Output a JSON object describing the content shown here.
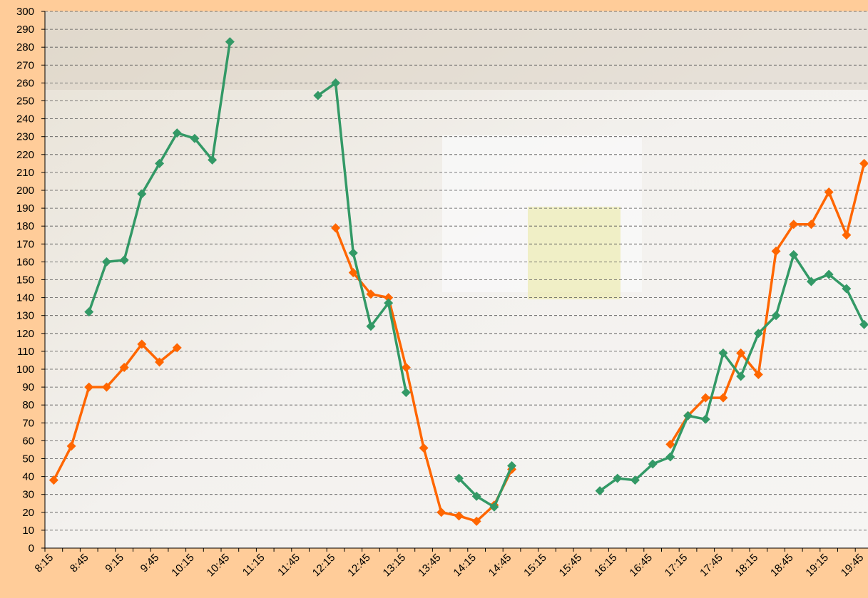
{
  "chart_data": {
    "type": "line",
    "categories": [
      "8:15",
      null,
      "8:45",
      null,
      "9:15",
      null,
      "9:45",
      null,
      "10:15",
      null,
      "10:45",
      null,
      "11:15",
      null,
      "11:45",
      null,
      "12:15",
      null,
      "12:45",
      null,
      "13:15",
      null,
      "13:45",
      null,
      "14:15",
      null,
      "14:45",
      null,
      "15:15",
      null,
      "15:45",
      null,
      "16:15",
      null,
      "16:45",
      null,
      "17:15",
      null,
      "17:45",
      null,
      "18:15",
      null,
      "18:45",
      null,
      "19:15",
      null,
      "19:45"
    ],
    "series": [
      {
        "color": "#ff6600",
        "values": [
          38,
          57,
          90,
          90,
          101,
          114,
          104,
          112,
          null,
          null,
          null,
          null,
          null,
          null,
          null,
          null,
          179,
          154,
          142,
          140,
          101,
          56,
          20,
          18,
          15,
          24,
          44,
          null,
          null,
          null,
          null,
          null,
          null,
          null,
          null,
          58,
          74,
          84,
          84,
          109,
          97,
          166,
          181,
          181,
          199,
          175,
          215
        ]
      },
      {
        "color": "#339966",
        "values": [
          null,
          null,
          132,
          160,
          161,
          198,
          215,
          232,
          229,
          217,
          283,
          null,
          null,
          null,
          null,
          253,
          260,
          165,
          124,
          137,
          87,
          null,
          null,
          39,
          29,
          23,
          46,
          null,
          null,
          null,
          null,
          32,
          39,
          38,
          47,
          51,
          74,
          72,
          109,
          96,
          120,
          130,
          164,
          149,
          153,
          145,
          125
        ]
      }
    ],
    "ylim": [
      0,
      300
    ],
    "yticks": [
      0,
      10,
      20,
      30,
      40,
      50,
      60,
      70,
      80,
      90,
      100,
      110,
      120,
      130,
      140,
      150,
      160,
      170,
      180,
      190,
      200,
      210,
      220,
      230,
      240,
      250,
      260,
      270,
      280,
      290,
      300
    ],
    "grid": true
  }
}
